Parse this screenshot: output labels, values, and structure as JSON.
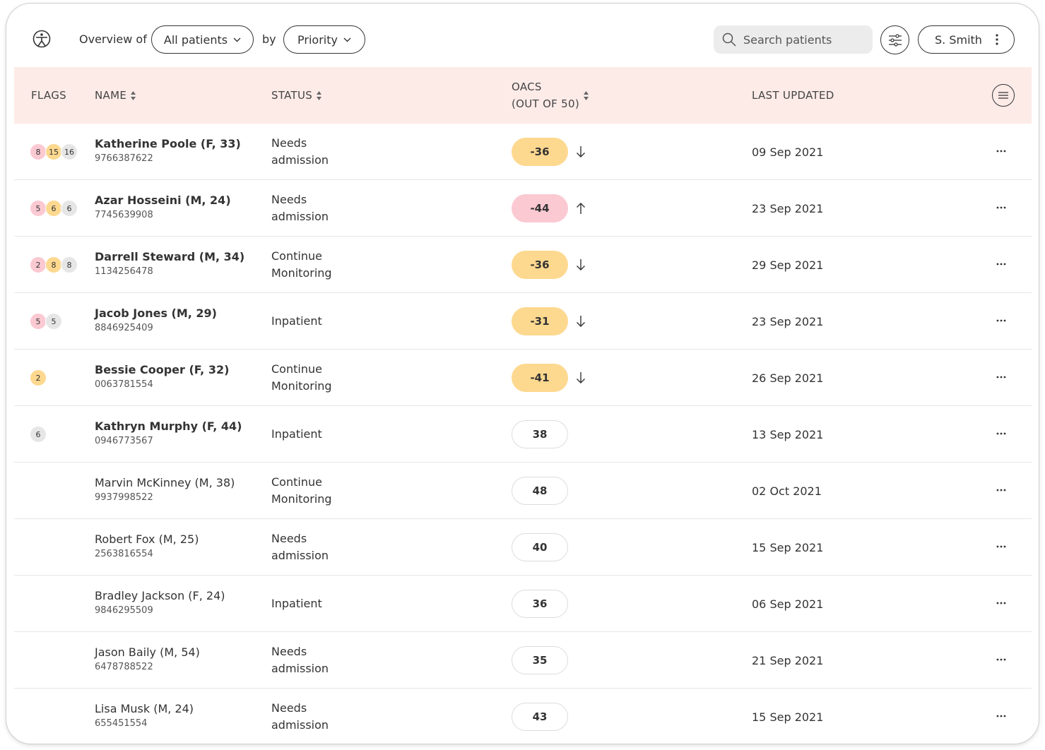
{
  "topbar": {
    "overview_label": "Overview of",
    "patients_filter": "All patients",
    "by_label": "by",
    "sort_filter": "Priority",
    "search_placeholder": "Search patients",
    "user_name": "S. Smith"
  },
  "table": {
    "headers": {
      "flags": "FLAGS",
      "name": "NAME",
      "status": "STATUS",
      "oacs_line1": "OACS",
      "oacs_line2": "(OUT OF 50)",
      "last_updated": "LAST UPDATED"
    },
    "rows": [
      {
        "flags": [
          {
            "n": "8",
            "c": "pink"
          },
          {
            "n": "15",
            "c": "amber"
          },
          {
            "n": "16",
            "c": "grey"
          }
        ],
        "name": "Katherine Poole (F, 33)",
        "bold": true,
        "id": "9766387622",
        "status": "Needs admission",
        "score": "-36",
        "score_style": "amber",
        "trend": "down",
        "updated": "09 Sep 2021"
      },
      {
        "flags": [
          {
            "n": "5",
            "c": "pink"
          },
          {
            "n": "6",
            "c": "amber"
          },
          {
            "n": "6",
            "c": "grey"
          }
        ],
        "name": "Azar Hosseini (M, 24)",
        "bold": true,
        "id": "7745639908",
        "status": "Needs admission",
        "score": "-44",
        "score_style": "pink",
        "trend": "up",
        "updated": "23 Sep 2021"
      },
      {
        "flags": [
          {
            "n": "2",
            "c": "pink"
          },
          {
            "n": "8",
            "c": "amber"
          },
          {
            "n": "8",
            "c": "grey"
          }
        ],
        "name": "Darrell Steward (M, 34)",
        "bold": true,
        "id": "1134256478",
        "status": "Continue Monitoring",
        "score": "-36",
        "score_style": "amber",
        "trend": "down",
        "updated": "29 Sep 2021"
      },
      {
        "flags": [
          {
            "n": "5",
            "c": "pink"
          },
          {
            "n": "5",
            "c": "grey"
          }
        ],
        "name": "Jacob Jones (M, 29)",
        "bold": true,
        "id": "8846925409",
        "status": "Inpatient",
        "score": "-31",
        "score_style": "amber",
        "trend": "down",
        "updated": "23 Sep 2021"
      },
      {
        "flags": [
          {
            "n": "2",
            "c": "amber"
          }
        ],
        "name": "Bessie Cooper (F, 32)",
        "bold": true,
        "id": "0063781554",
        "status": "Continue Monitoring",
        "score": "-41",
        "score_style": "amber",
        "trend": "down",
        "updated": "26 Sep 2021"
      },
      {
        "flags": [
          {
            "n": "6",
            "c": "grey"
          }
        ],
        "name": "Kathryn Murphy (F, 44)",
        "bold": true,
        "id": "0946773567",
        "status": "Inpatient",
        "score": "38",
        "score_style": "plain",
        "trend": "",
        "updated": "13 Sep 2021"
      },
      {
        "flags": [],
        "name": "Marvin McKinney (M, 38)",
        "bold": false,
        "id": "9937998522",
        "status": "Continue Monitoring",
        "score": "48",
        "score_style": "plain",
        "trend": "",
        "updated": "02 Oct 2021"
      },
      {
        "flags": [],
        "name": "Robert Fox (M, 25)",
        "bold": false,
        "id": "2563816554",
        "status": "Needs admission",
        "score": "40",
        "score_style": "plain",
        "trend": "",
        "updated": "15 Sep 2021"
      },
      {
        "flags": [],
        "name": "Bradley Jackson (F, 24)",
        "bold": false,
        "id": "9846295509",
        "status": "Inpatient",
        "score": "36",
        "score_style": "plain",
        "trend": "",
        "updated": "06 Sep 2021"
      },
      {
        "flags": [],
        "name": "Jason Baily (M, 54)",
        "bold": false,
        "id": "6478788522",
        "status": "Needs admission",
        "score": "35",
        "score_style": "plain",
        "trend": "",
        "updated": "21 Sep 2021"
      },
      {
        "flags": [],
        "name": "Lisa Musk (M, 24)",
        "bold": false,
        "id": "655451554",
        "status": "Needs admission",
        "score": "43",
        "score_style": "plain",
        "trend": "",
        "updated": "15 Sep 2021"
      }
    ]
  },
  "icons": {
    "logo": "accessibility-logo-icon",
    "search": "search-icon",
    "filter": "sliders-icon",
    "user_menu": "kebab-icon",
    "column_menu": "menu-lines-icon",
    "row_more": "more-dots-icon",
    "trend_up": "arrow-up-icon",
    "trend_down": "arrow-down-icon",
    "sort": "sort-icon"
  },
  "colors": {
    "header_bg": "#fdebe8",
    "amber": "#fdd88f",
    "pink": "#fbc9d2",
    "grey": "#e6e6e6"
  }
}
